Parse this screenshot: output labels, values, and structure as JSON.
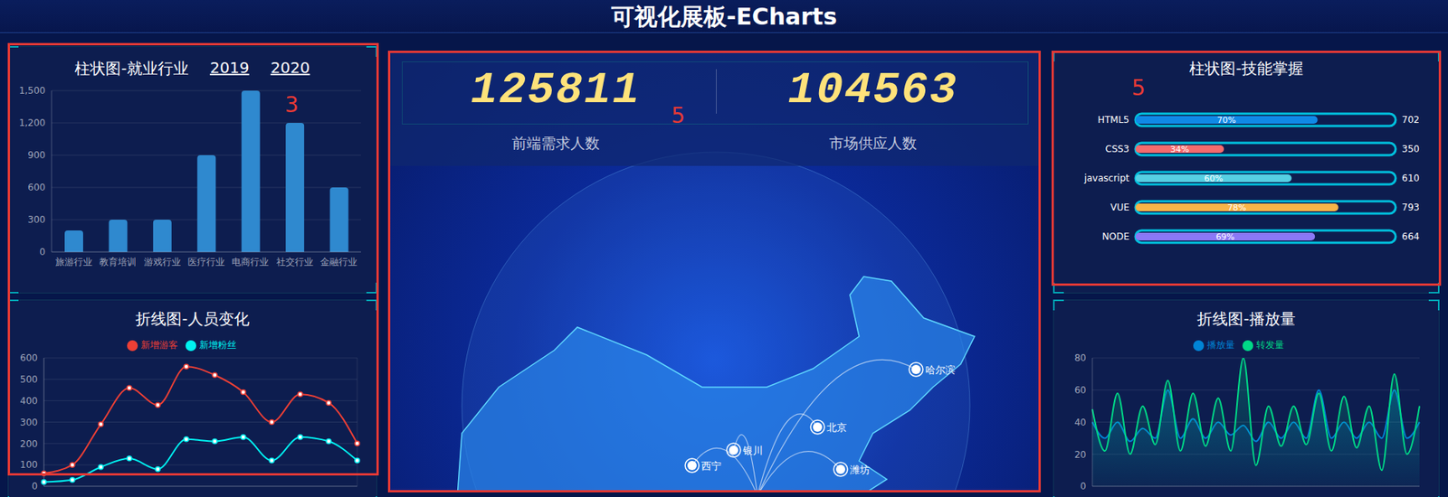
{
  "title": "可视化展板-ECharts",
  "chart_data": [
    {
      "type": "bar",
      "title": "柱状图-就业行业",
      "tabs": [
        "2019",
        "2020"
      ],
      "annotation": "3",
      "categories": [
        "旅游行业",
        "教育培训",
        "游戏行业",
        "医疗行业",
        "电商行业",
        "社交行业",
        "金融行业"
      ],
      "values": [
        200,
        300,
        300,
        900,
        1500,
        1200,
        600
      ],
      "color": "#2f89cf",
      "ylim": [
        0,
        1500
      ],
      "yticks": [
        0,
        300,
        600,
        900,
        {
          "value": 1200,
          "label": "1,200"
        },
        {
          "value": 1500,
          "label": "1,500"
        }
      ],
      "grid": true
    },
    {
      "type": "line",
      "title": "折线图-人员变化",
      "categories": [
        null,
        null,
        null,
        null,
        null,
        null,
        null,
        null,
        null,
        null,
        null,
        null
      ],
      "series": [
        {
          "name": "新增粉丝",
          "color": "#00f2f1",
          "values": [
            20,
            30,
            90,
            130,
            80,
            220,
            210,
            230,
            120,
            230,
            210,
            120
          ]
        },
        {
          "name": "新增游客",
          "color": "#ed3f35",
          "values": [
            60,
            100,
            290,
            460,
            380,
            560,
            520,
            440,
            300,
            430,
            390,
            200
          ]
        }
      ],
      "ylim": [
        0,
        600
      ],
      "yticks": [
        0,
        100,
        200,
        300,
        400,
        500,
        600
      ],
      "grid": true,
      "legend": "top",
      "marker": "circle",
      "tick_labels": "y"
    },
    {
      "type": "bar",
      "orientation": "horizontal",
      "title": "柱状图-技能掌握",
      "annotation": "5",
      "categories": [
        "HTML5",
        "CSS3",
        "javascript",
        "VUE",
        "NODE"
      ],
      "values": [
        70,
        34,
        60,
        78,
        69
      ],
      "value_labels": [
        "70%",
        "34%",
        "60%",
        "78%",
        "69%"
      ],
      "totals": [
        702,
        350,
        610,
        793,
        664
      ],
      "colors": [
        "#1089e7",
        "#f56b6d",
        "#56d0e3",
        "#f8b448",
        "#8b78f6"
      ],
      "xlim": [
        0,
        100
      ],
      "data_labels": true,
      "tick_labels": "y"
    },
    {
      "type": "area",
      "title": "折线图-播放量",
      "categories": [
        null,
        null,
        null,
        null,
        null,
        null,
        null,
        null,
        null,
        null,
        null,
        null,
        null,
        null,
        null,
        null,
        null,
        null,
        null,
        null,
        null,
        null,
        null,
        null,
        null,
        null,
        null
      ],
      "series": [
        {
          "name": "播放量",
          "color": "#0184d5",
          "values": [
            40,
            30,
            40,
            28,
            36,
            30,
            60,
            30,
            42,
            30,
            40,
            32,
            38,
            28,
            40,
            30,
            40,
            30,
            60,
            30,
            40,
            30,
            40,
            30,
            60,
            30,
            40
          ]
        },
        {
          "name": "转发量",
          "color": "#00d887",
          "values": [
            48,
            22,
            58,
            20,
            50,
            26,
            66,
            22,
            58,
            25,
            55,
            22,
            80,
            13,
            50,
            25,
            50,
            26,
            58,
            22,
            56,
            24,
            50,
            10,
            70,
            20,
            50
          ]
        }
      ],
      "ylim": [
        0,
        80
      ],
      "yticks": [
        0,
        20,
        40,
        60,
        80
      ],
      "grid": true,
      "legend": "top",
      "tick_labels": "y"
    }
  ],
  "center": {
    "annotation": "5",
    "stats": [
      {
        "value": 125811,
        "label": "前端需求人数"
      },
      {
        "value": 104563,
        "label": "市场供应人数"
      }
    ],
    "map_cities": [
      "哈尔滨",
      "北京",
      "银川",
      "西宁",
      "潍坊"
    ]
  }
}
